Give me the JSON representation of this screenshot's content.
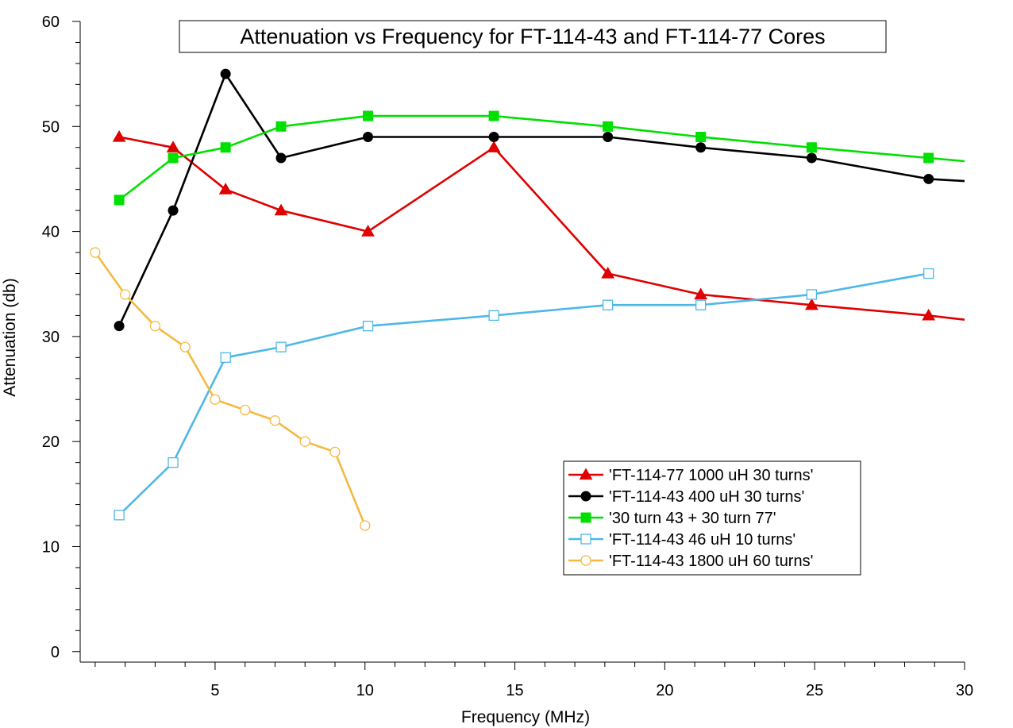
{
  "chart_data": {
    "type": "line",
    "title": "Attenuation vs Frequency for FT-114-43 and FT-114-77 Cores",
    "xlabel": "Frequency (MHz)",
    "ylabel": "Attenuation (db)",
    "xlim": [
      0.5,
      30
    ],
    "ylim": [
      -1,
      60
    ],
    "xticks": [
      5,
      10,
      15,
      20,
      25,
      30
    ],
    "yticks": [
      0,
      10,
      20,
      30,
      40,
      50,
      60
    ],
    "grid": false,
    "legend_position": "bottom-right",
    "series": [
      {
        "name": "'FT-114-77 1000 uH 30 turns'",
        "color": "#e00000",
        "marker": "triangle-filled",
        "x": [
          1.8,
          3.6,
          5.35,
          7.2,
          10.1,
          14.3,
          18.1,
          21.2,
          24.9,
          28.8,
          30
        ],
        "y": [
          49,
          48,
          44,
          42,
          40,
          48,
          36,
          34,
          33,
          32,
          31.6
        ]
      },
      {
        "name": "'FT-114-43 400 uH 30 turns'",
        "color": "#000000",
        "marker": "circle-filled",
        "x": [
          1.8,
          3.6,
          5.35,
          7.2,
          10.1,
          14.3,
          18.1,
          21.2,
          24.9,
          28.8,
          30
        ],
        "y": [
          31,
          42,
          55,
          47,
          49,
          49,
          49,
          48,
          47,
          45,
          44.8
        ]
      },
      {
        "name": "'30 turn 43 + 30 turn 77'",
        "color": "#00e000",
        "marker": "square-filled",
        "x": [
          1.8,
          3.6,
          5.35,
          7.2,
          10.1,
          14.3,
          18.1,
          21.2,
          24.9,
          28.8,
          30
        ],
        "y": [
          43,
          47,
          48,
          50,
          51,
          51,
          50,
          49,
          48,
          47,
          46.7
        ]
      },
      {
        "name": "'FT-114-43 46 uH 10 turns'",
        "color": "#4db8e8",
        "marker": "square-open",
        "x": [
          1.8,
          3.6,
          5.35,
          7.2,
          10.1,
          14.3,
          18.1,
          21.2,
          24.9,
          28.8
        ],
        "y": [
          13,
          18,
          28,
          29,
          31,
          32,
          33,
          33,
          34,
          36
        ]
      },
      {
        "name": "'FT-114-43 1800 uH 60 turns'",
        "color": "#f5b942",
        "marker": "circle-open",
        "x": [
          1,
          2,
          3,
          4,
          5,
          6,
          7,
          8,
          9,
          10
        ],
        "y": [
          38,
          34,
          31,
          29,
          24,
          23,
          22,
          20,
          19,
          12
        ]
      }
    ]
  }
}
